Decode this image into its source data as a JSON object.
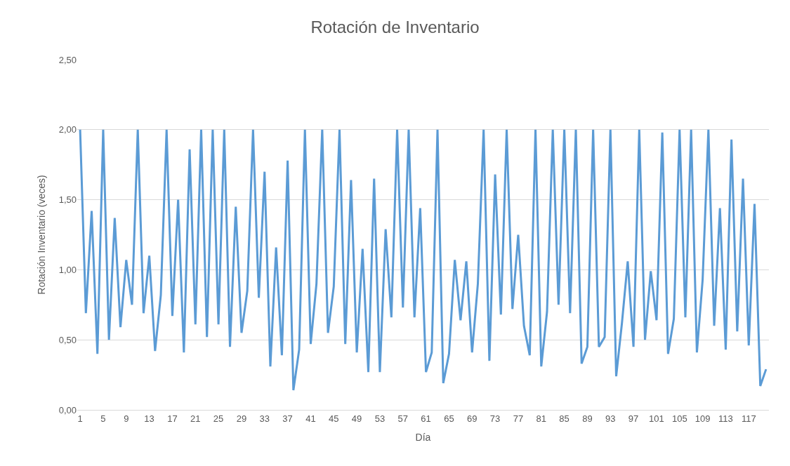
{
  "chart_data": {
    "type": "line",
    "title": "Rotación de Inventario",
    "xlabel": "Día",
    "ylabel": "Rotación Inventario (veces)",
    "categories": [
      "1",
      null,
      null,
      null,
      "5",
      null,
      null,
      null,
      "9",
      null,
      null,
      null,
      "13",
      null,
      null,
      null,
      "17",
      null,
      null,
      null,
      "21",
      null,
      null,
      null,
      "25",
      null,
      null,
      null,
      "29",
      null,
      null,
      null,
      "33",
      null,
      null,
      null,
      "37",
      null,
      null,
      null,
      "41",
      null,
      null,
      null,
      "45",
      null,
      null,
      null,
      "49",
      null,
      null,
      null,
      "53",
      null,
      null,
      null,
      "57",
      null,
      null,
      null,
      "61",
      null,
      null,
      null,
      "65",
      null,
      null,
      null,
      "69",
      null,
      null,
      null,
      "73",
      null,
      null,
      null,
      "77",
      null,
      null,
      null,
      "81",
      null,
      null,
      null,
      "85",
      null,
      null,
      null,
      "89",
      null,
      null,
      null,
      "93",
      null,
      null,
      null,
      "97",
      null,
      null,
      null,
      "101",
      null,
      null,
      null,
      "105",
      null,
      null,
      null,
      "109",
      null,
      null,
      null,
      "113",
      null,
      null,
      null,
      "117",
      null,
      null,
      null
    ],
    "series": [
      {
        "color": "#5b9bd5",
        "values": [
          2.0,
          0.69,
          1.42,
          0.4,
          2.0,
          0.5,
          1.37,
          0.59,
          1.07,
          0.75,
          2.0,
          0.69,
          1.1,
          0.42,
          0.82,
          2.0,
          0.67,
          1.5,
          0.41,
          1.86,
          0.61,
          2.0,
          0.52,
          2.0,
          0.61,
          2.0,
          0.45,
          1.45,
          0.55,
          0.85,
          2.0,
          0.8,
          1.7,
          0.31,
          1.16,
          0.39,
          1.78,
          0.14,
          0.43,
          2.0,
          0.47,
          0.9,
          2.0,
          0.55,
          0.88,
          2.0,
          0.47,
          1.64,
          0.41,
          1.15,
          0.27,
          1.65,
          0.27,
          1.29,
          0.66,
          2.0,
          0.73,
          2.0,
          0.66,
          1.44,
          0.27,
          0.41,
          2.0,
          0.19,
          0.4,
          1.07,
          0.64,
          1.06,
          0.41,
          0.9,
          2.0,
          0.35,
          1.68,
          0.68,
          2.0,
          0.72,
          1.25,
          0.6,
          0.39,
          2.0,
          0.31,
          0.7,
          2.0,
          0.75,
          2.0,
          0.69,
          2.0,
          0.33,
          0.45,
          2.0,
          0.45,
          0.52,
          2.0,
          0.24,
          0.62,
          1.06,
          0.45,
          2.0,
          0.5,
          0.99,
          0.64,
          1.98,
          0.4,
          0.65,
          2.0,
          0.66,
          2.0,
          0.41,
          0.93,
          2.0,
          0.6,
          1.44,
          0.43,
          1.93,
          0.56,
          1.65,
          0.46,
          1.47,
          0.17,
          0.29
        ]
      }
    ],
    "ylim": [
      0,
      2.5
    ],
    "yticks": [
      {
        "value": 0,
        "label": "0,00"
      },
      {
        "value": 0.5,
        "label": "0,50"
      },
      {
        "value": 1,
        "label": "1,00"
      },
      {
        "value": 1.5,
        "label": "1,50"
      },
      {
        "value": 2,
        "label": "2,00"
      },
      {
        "value": 2.5,
        "label": "2,50"
      }
    ],
    "grid": "y",
    "marker": "none",
    "line_style": "solid"
  }
}
